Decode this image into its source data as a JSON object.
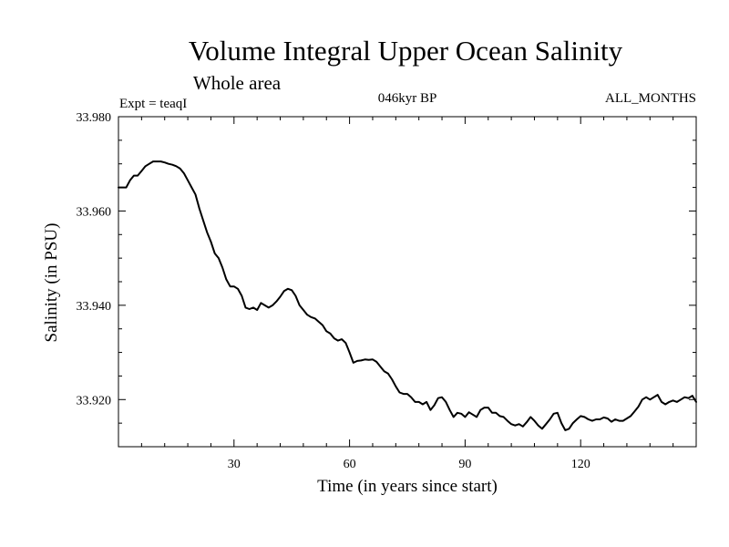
{
  "chart_data": {
    "type": "line",
    "title": "Volume Integral Upper Ocean Salinity",
    "subtitle": "Whole area",
    "experiment": "Expt = teaqI",
    "period": "046kyr BP",
    "months": "ALL_MONTHS",
    "xlabel": "Time (in years since start)",
    "ylabel": "Salinity (in PSU)",
    "xlim": [
      0,
      150
    ],
    "ylim": [
      33.91,
      33.98
    ],
    "xticks": [
      30,
      60,
      90,
      120
    ],
    "xtick_labels": [
      "30",
      "60",
      "90",
      "120"
    ],
    "yticks": [
      33.92,
      33.94,
      33.96,
      33.98
    ],
    "ytick_labels": [
      "33.920",
      "33.940",
      "33.960",
      "33.980"
    ],
    "series": [
      {
        "name": "salinity",
        "x": [
          0,
          2,
          3,
          4,
          5,
          6,
          7,
          8,
          9,
          10,
          11,
          12,
          13,
          14,
          15,
          16,
          17,
          18,
          19,
          20,
          21,
          22,
          23,
          24,
          25,
          26,
          27,
          28,
          29,
          30,
          31,
          32,
          33,
          34,
          35,
          36,
          37,
          38,
          39,
          40,
          41,
          42,
          43,
          44,
          45,
          46,
          47,
          48,
          49,
          50,
          51,
          52,
          53,
          54,
          55,
          56,
          57,
          58,
          59,
          60,
          61,
          62,
          63,
          64,
          65,
          66,
          67,
          68,
          69,
          70,
          71,
          72,
          73,
          74,
          75,
          76,
          77,
          78,
          79,
          80,
          81,
          82,
          83,
          84,
          85,
          86,
          87,
          88,
          89,
          90,
          91,
          92,
          93,
          94,
          95,
          96,
          97,
          98,
          99,
          100,
          101,
          102,
          103,
          104,
          105,
          106,
          107,
          108,
          109,
          110,
          111,
          112,
          113,
          114,
          115,
          116,
          117,
          118,
          119,
          120,
          121,
          122,
          123,
          124,
          125,
          126,
          127,
          128,
          129,
          130,
          131,
          132,
          133,
          134,
          135,
          136,
          137,
          138,
          139,
          140,
          141,
          142,
          143,
          144,
          145,
          146,
          147,
          148,
          149,
          150
        ],
        "y": [
          33.965,
          33.965,
          33.9665,
          33.9675,
          33.9675,
          33.9685,
          33.9695,
          33.97,
          33.9705,
          33.9705,
          33.9705,
          33.9703,
          33.97,
          33.9698,
          33.9695,
          33.969,
          33.968,
          33.9665,
          33.965,
          33.9635,
          33.9605,
          33.958,
          33.9555,
          33.9535,
          33.951,
          33.95,
          33.948,
          33.9455,
          33.944,
          33.944,
          33.9435,
          33.942,
          33.9395,
          33.9392,
          33.9395,
          33.939,
          33.9405,
          33.94,
          33.9395,
          33.94,
          33.9408,
          33.9418,
          33.943,
          33.9435,
          33.9432,
          33.942,
          33.94,
          33.939,
          33.938,
          33.9375,
          33.9372,
          33.9365,
          33.9358,
          33.9345,
          33.934,
          33.933,
          33.9325,
          33.9328,
          33.932,
          33.93,
          33.9278,
          33.9282,
          33.9283,
          33.9285,
          33.9284,
          33.9285,
          33.928,
          33.927,
          33.926,
          33.9255,
          33.9243,
          33.9228,
          33.9215,
          33.9212,
          33.9212,
          33.9205,
          33.9195,
          33.9195,
          33.919,
          33.9195,
          33.9178,
          33.9188,
          33.9203,
          33.9205,
          33.9195,
          33.9178,
          33.9163,
          33.9172,
          33.917,
          33.9163,
          33.9173,
          33.9168,
          33.9163,
          33.9178,
          33.9183,
          33.9183,
          33.9172,
          33.9172,
          33.9165,
          33.9163,
          33.9155,
          33.9148,
          33.9145,
          33.9148,
          33.9143,
          33.9152,
          33.9163,
          33.9155,
          33.9145,
          33.9138,
          33.9148,
          33.9158,
          33.917,
          33.9172,
          33.915,
          33.9135,
          33.9138,
          33.915,
          33.9158,
          33.9165,
          33.9163,
          33.9158,
          33.9155,
          33.9158,
          33.9158,
          33.9162,
          33.916,
          33.9153,
          33.9158,
          33.9155,
          33.9155,
          33.916,
          33.9165,
          33.9175,
          33.9185,
          33.92,
          33.9205,
          33.92,
          33.9205,
          33.921,
          33.9195,
          33.919,
          33.9195,
          33.9198,
          33.9195,
          33.92,
          33.9205,
          33.9203,
          33.9208,
          33.9195
        ]
      }
    ]
  }
}
